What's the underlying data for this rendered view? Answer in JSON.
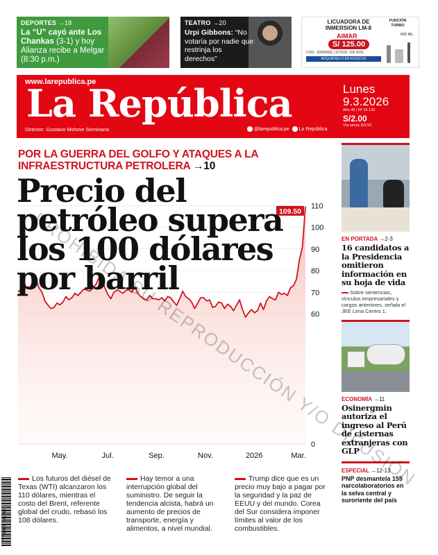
{
  "teasers": {
    "sports": {
      "section": "DEPORTES",
      "page": "→18",
      "headline_bold": "La “U” cayó ante Los Chankas",
      "headline_rest": " (3-1) y hoy Alianza recibe a Melgar (8:30 p.m.)"
    },
    "theater": {
      "section": "TEATRO",
      "page": "→20",
      "name": "Urpi Gibbons:",
      "quote": " “No votaría por nadie que restrinja los derechos”"
    },
    "ad": {
      "title": "LICUADORA DE INMERSION LM-8",
      "brand": "AIMAR",
      "price": "S/ 125.00",
      "code": "CÓD.: 300099(5) | STOCK: 100 UDS.",
      "note": "ADQUIÉRELO EN KIOSCOS",
      "function": "FUNCIÓN TURBO",
      "capacity": "600 ML."
    }
  },
  "masthead": {
    "url": "www.larepublica.pe",
    "logo": "La República",
    "director": "Director: Gustavo Mohme Seminario",
    "twitter": "@larepublica.pe",
    "facebook": "La República",
    "day": "Lunes",
    "date": "9.3.2026",
    "edition": "Año 45 | Nº 16.130",
    "price": "S/2.00",
    "price_alt": "Vía aérea S/2.50"
  },
  "main": {
    "kicker": "POR LA GUERRA DEL GOLFO Y ATAQUES A LA INFRAESTRUCTURA PETROLERA",
    "kicker_page": "→10",
    "headline": "Precio del petróleo supera los 100 dólares por barril",
    "columns": [
      "Los futuros del diésel de Texas (WTI) alcanzaron los 110 dólares, mientras el costo del Brent, referente global del crudo, rebasó los 108 dólares.",
      "Hay temor a una interrupción global del suministro. De seguir la tendencia alcista, habrá un aumento de precios de transporte, energía y alimentos, a nivel mundial.",
      "Trump dice que es un precio muy bajo a pagar por la seguridad y la paz de EEUU y del mundo. Corea del Sur considera imponer límites al valor de los combustibles."
    ]
  },
  "chart_data": {
    "type": "area",
    "title": "",
    "xlabel": "",
    "ylabel": "",
    "x_tick_labels": [
      "May.",
      "Jul.",
      "Sep.",
      "Nov.",
      "2026",
      "Mar."
    ],
    "y_ticks": [
      0,
      60,
      70,
      80,
      90,
      100,
      110
    ],
    "ylim": [
      0,
      112
    ],
    "last_value_label": "109.50",
    "series": [
      {
        "values": [
          70.2,
          71.5,
          71.0,
          72.5,
          72.2,
          75.0,
          75.8,
          72.0,
          70.0,
          66.0,
          64.0,
          62.5,
          63.0,
          65.0,
          64.2,
          65.5,
          68.0,
          66.5,
          67.5,
          69.5,
          68.5,
          70.0,
          71.5,
          71.0,
          70.5,
          72.0,
          73.5,
          76.5,
          77.0,
          72.0,
          69.0,
          67.0,
          70.0,
          71.0,
          70.5,
          69.5,
          70.8,
          71.2,
          70.0,
          72.5,
          69.5,
          68.0,
          67.0,
          66.5,
          68.5,
          67.0,
          67.0,
          66.5,
          67.5,
          66.0,
          68.0,
          67.5,
          65.5,
          64.0,
          67.0,
          70.5,
          68.0,
          67.0,
          65.5,
          62.5,
          65.0,
          67.5,
          67.5,
          66.0,
          66.5,
          63.0,
          63.5,
          65.5,
          65.0,
          62.5,
          64.5,
          63.5,
          61.5,
          64.0,
          66.5,
          62.0,
          58.5,
          60.5,
          62.0,
          60.5,
          61.5,
          65.0,
          62.0,
          66.0,
          68.0,
          67.0,
          66.5,
          70.0,
          69.0,
          69.5,
          68.5,
          72.0,
          73.0,
          76.0,
          85.0,
          91.0,
          109.5
        ]
      }
    ]
  },
  "sidebar": {
    "story1": {
      "section": "EN PORTADA",
      "page": "→2-3",
      "headline": "16 candidatos a la Presidencia omitieron información en su hoja de vida",
      "body": "Sobre sentencias, vínculos empresariales y cargos anteriores, señala el JEE Lima Centro 1."
    },
    "story2": {
      "section": "ECONOMÍA",
      "page": "→11",
      "headline": "Osinergmin autoriza el ingreso al Perú de cisternas extranjeras con GLP"
    },
    "story3": {
      "section": "ESPECIAL",
      "page": "→12-13",
      "headline": "PNP desmantela 155 narcolaboratorios en la selva central y suroriente del país"
    }
  },
  "barcode_number": "7 750809 141769",
  "watermark": "PROHIBIDA SU REPRODUCCIÓN Y/O DIFUSIÓN"
}
